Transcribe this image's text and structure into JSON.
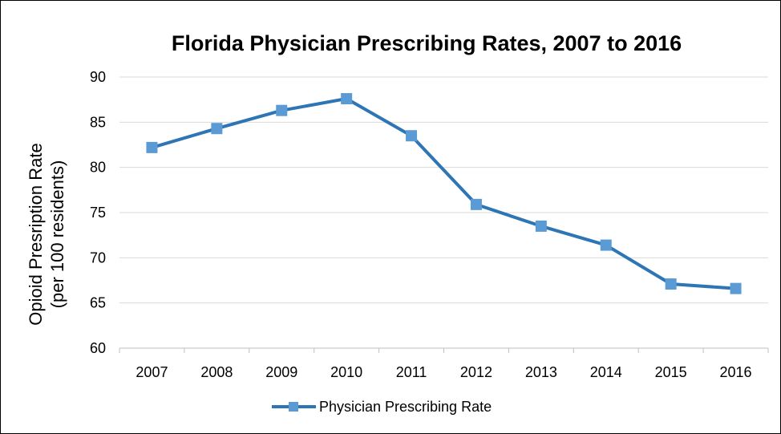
{
  "chart_data": {
    "type": "line",
    "title": "Florida Physician Prescribing Rates, 2007 to 2016",
    "ylabel_line1": "Opioid Presription Rate",
    "ylabel_line2": "(per 100 residents)",
    "xlabel": "",
    "categories": [
      "2007",
      "2008",
      "2009",
      "2010",
      "2011",
      "2012",
      "2013",
      "2014",
      "2015",
      "2016"
    ],
    "yticks": [
      "60",
      "65",
      "70",
      "75",
      "80",
      "85",
      "90"
    ],
    "ylim": [
      60,
      90
    ],
    "grid": true,
    "legend_position": "bottom",
    "series": [
      {
        "name": "Physician Prescribing Rate",
        "color": "#2E75B6",
        "marker_color": "#5B9BD5",
        "values": [
          82.2,
          84.3,
          86.3,
          87.6,
          83.5,
          75.9,
          73.5,
          71.4,
          67.1,
          66.6
        ]
      }
    ]
  }
}
